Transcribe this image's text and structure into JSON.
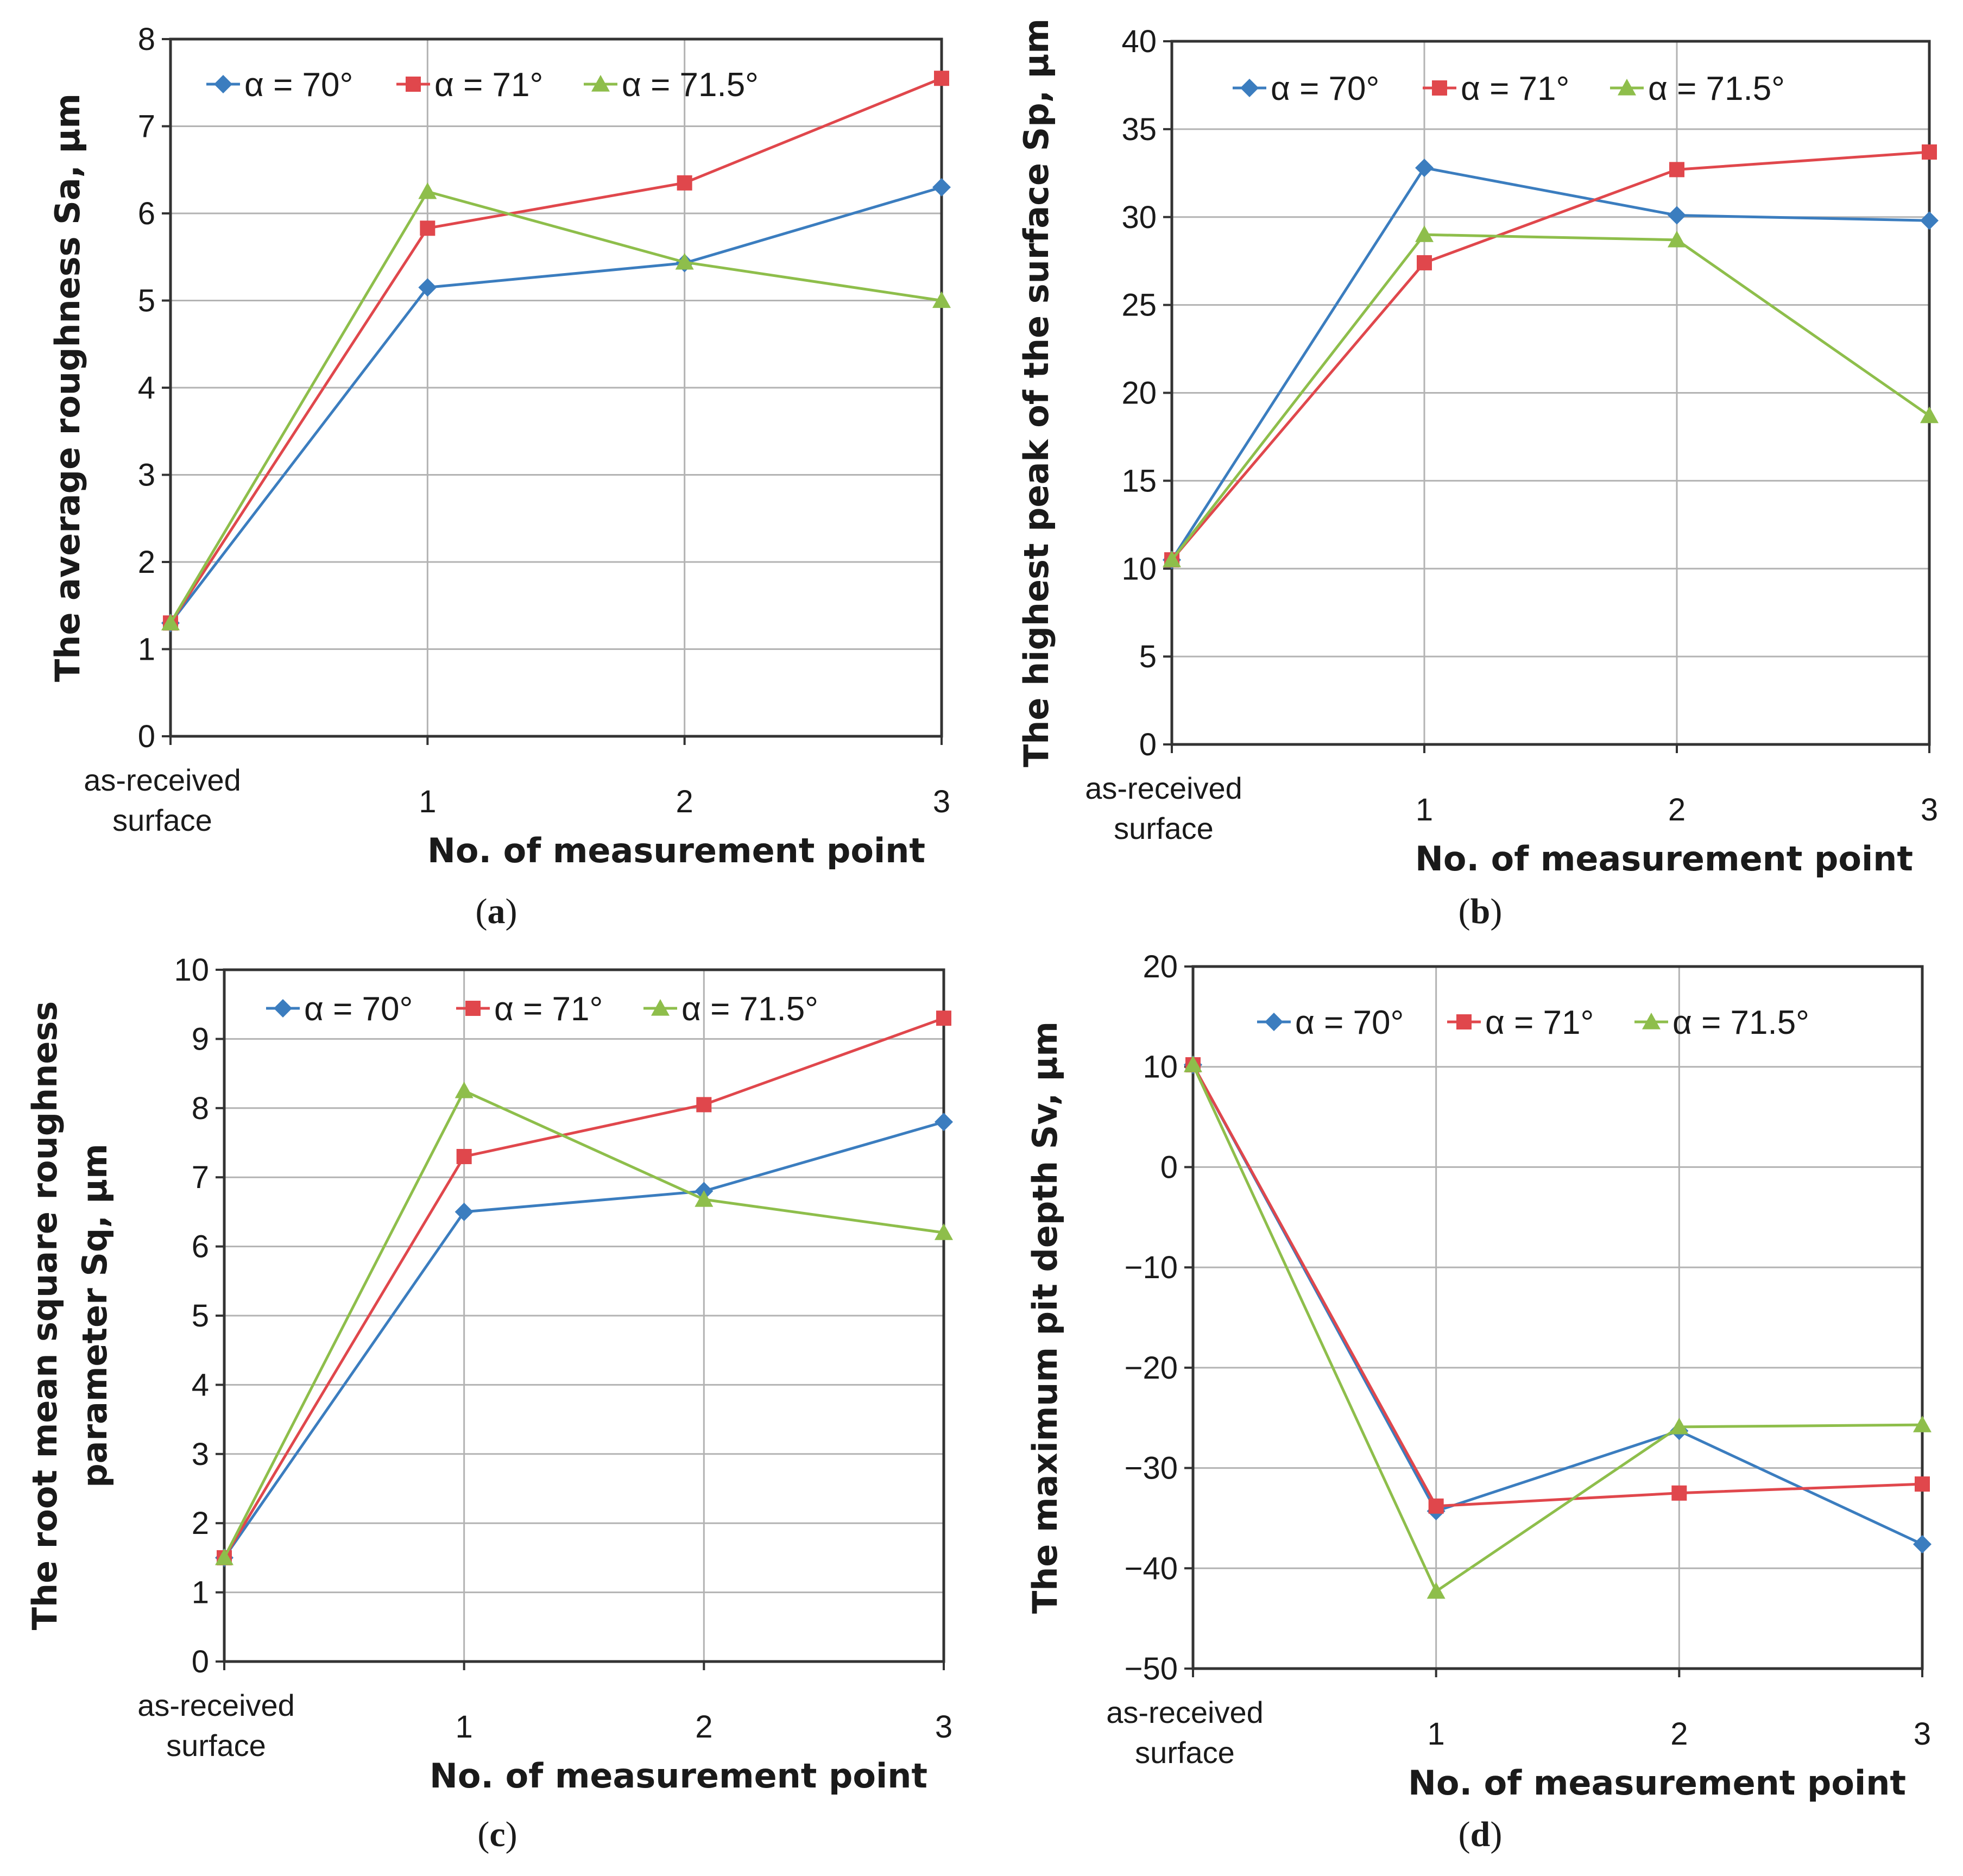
{
  "colors": {
    "series": [
      "#3b7dbf",
      "#e0474c",
      "#8ebe4b"
    ],
    "grid": "#b3b3b3",
    "axis": "#333333"
  },
  "series_names": [
    "α = 70°",
    "α = 71°",
    "α = 71.5°"
  ],
  "chart_data": [
    {
      "type": "line",
      "panel": "a",
      "categories": [
        "as-received surface",
        "1",
        "2",
        "3"
      ],
      "category_lines": [
        [
          "as-received",
          "surface"
        ],
        [
          "1"
        ],
        [
          "2"
        ],
        [
          "3"
        ]
      ],
      "xlabel": "No. of measurement point",
      "ylabel": "The average roughness Sa, µm",
      "ylabel_lines": [
        "The average roughness Sa, µm"
      ],
      "ylim": [
        0,
        8
      ],
      "yticks": [
        0,
        1,
        2,
        3,
        4,
        5,
        6,
        7,
        8
      ],
      "ytick_labels": [
        "0",
        "1",
        "2",
        "3",
        "4",
        "5",
        "6",
        "7",
        "8"
      ],
      "grid": true,
      "legend": "top",
      "series": [
        {
          "name": "α = 70°",
          "marker": "diamond",
          "values": [
            1.3,
            5.15,
            5.43,
            6.3
          ]
        },
        {
          "name": "α = 71°",
          "marker": "square",
          "values": [
            1.3,
            5.83,
            6.35,
            7.55
          ]
        },
        {
          "name": "α = 71.5°",
          "marker": "triangle",
          "values": [
            1.3,
            6.25,
            5.44,
            5.0
          ]
        }
      ]
    },
    {
      "type": "line",
      "panel": "b",
      "categories": [
        "as-received surface",
        "1",
        "2",
        "3"
      ],
      "category_lines": [
        [
          "as-received",
          "surface"
        ],
        [
          "1"
        ],
        [
          "2"
        ],
        [
          "3"
        ]
      ],
      "xlabel": "No. of measurement point",
      "ylabel": "The highest peak of the surface Sp, µm",
      "ylabel_lines": [
        "The highest peak of the surface Sp, µm"
      ],
      "ylim": [
        0,
        40
      ],
      "yticks": [
        0,
        5,
        10,
        15,
        20,
        25,
        30,
        35,
        40
      ],
      "ytick_labels": [
        "0",
        "5",
        "10",
        "15",
        "20",
        "25",
        "30",
        "35",
        "40"
      ],
      "grid": true,
      "legend": "top",
      "series": [
        {
          "name": "α = 70°",
          "marker": "diamond",
          "values": [
            10.5,
            32.8,
            30.1,
            29.8
          ]
        },
        {
          "name": "α = 71°",
          "marker": "square",
          "values": [
            10.5,
            27.4,
            32.7,
            33.7
          ]
        },
        {
          "name": "α = 71.5°",
          "marker": "triangle",
          "values": [
            10.5,
            29.0,
            28.7,
            18.7
          ]
        }
      ]
    },
    {
      "type": "line",
      "panel": "c",
      "categories": [
        "as-received surface",
        "1",
        "2",
        "3"
      ],
      "category_lines": [
        [
          "as-received",
          "surface"
        ],
        [
          "1"
        ],
        [
          "2"
        ],
        [
          "3"
        ]
      ],
      "xlabel": "No. of measurement point",
      "ylabel": "The root mean square roughness parameter Sq, µm",
      "ylabel_lines": [
        "The root mean square roughness",
        "parameter Sq, µm"
      ],
      "ylim": [
        0,
        10
      ],
      "yticks": [
        0,
        1,
        2,
        3,
        4,
        5,
        6,
        7,
        8,
        9,
        10
      ],
      "ytick_labels": [
        "0",
        "1",
        "2",
        "3",
        "4",
        "5",
        "6",
        "7",
        "8",
        "9",
        "10"
      ],
      "grid": true,
      "legend": "top",
      "series": [
        {
          "name": "α = 70°",
          "marker": "diamond",
          "values": [
            1.5,
            6.5,
            6.8,
            7.8
          ]
        },
        {
          "name": "α = 71°",
          "marker": "square",
          "values": [
            1.5,
            7.3,
            8.05,
            9.3
          ]
        },
        {
          "name": "α = 71.5°",
          "marker": "triangle",
          "values": [
            1.5,
            8.25,
            6.68,
            6.2
          ]
        }
      ]
    },
    {
      "type": "line",
      "panel": "d",
      "categories": [
        "as-received surface",
        "1",
        "2",
        "3"
      ],
      "category_lines": [
        [
          "as-received",
          "surface"
        ],
        [
          "1"
        ],
        [
          "2"
        ],
        [
          "3"
        ]
      ],
      "xlabel": "No. of measurement point",
      "ylabel": "The maximum pit depth Sv, µm",
      "ylabel_lines": [
        "The maximum pit depth Sv, µm"
      ],
      "ylim": [
        -50,
        20
      ],
      "yticks": [
        -50,
        -40,
        -30,
        -20,
        -10,
        0,
        10,
        20
      ],
      "ytick_labels": [
        "−50",
        "−40",
        "−30",
        "−20",
        "−10",
        "0",
        "10",
        "20"
      ],
      "grid": true,
      "legend": "top",
      "series": [
        {
          "name": "α = 70°",
          "marker": "diamond",
          "values": [
            10.2,
            -34.3,
            -26.3,
            -37.6
          ]
        },
        {
          "name": "α = 71°",
          "marker": "square",
          "values": [
            10.2,
            -33.8,
            -32.5,
            -31.6
          ]
        },
        {
          "name": "α = 71.5°",
          "marker": "triangle",
          "values": [
            10.2,
            -42.3,
            -25.9,
            -25.7
          ]
        }
      ]
    }
  ],
  "panel_labels": [
    {
      "open": "(",
      "letter": "a",
      "close": ")"
    },
    {
      "open": "(",
      "letter": "b",
      "close": ")"
    },
    {
      "open": "(",
      "letter": "c",
      "close": ")"
    },
    {
      "open": "(",
      "letter": "d",
      "close": ")"
    }
  ]
}
